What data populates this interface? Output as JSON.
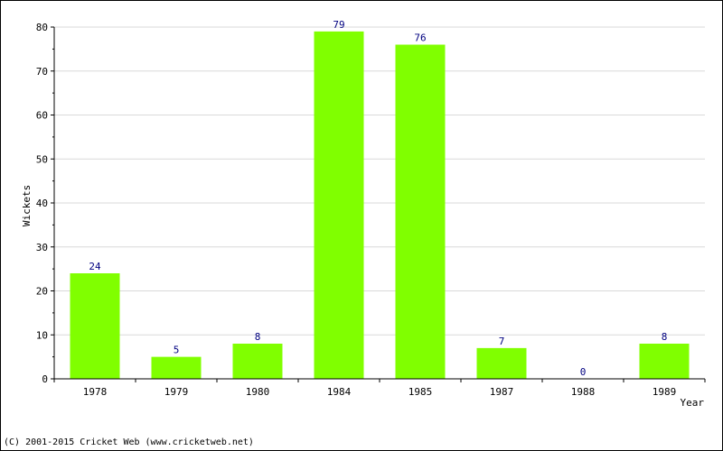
{
  "chart_data": {
    "type": "bar",
    "categories": [
      "1978",
      "1979",
      "1980",
      "1984",
      "1985",
      "1987",
      "1988",
      "1989"
    ],
    "values": [
      24,
      5,
      8,
      79,
      76,
      7,
      0,
      8
    ],
    "title": "",
    "xlabel": "Year",
    "ylabel": "Wickets",
    "ylim": [
      0,
      80
    ],
    "yticks": [
      0,
      10,
      20,
      30,
      40,
      50,
      60,
      70,
      80
    ],
    "grid": true,
    "show_value_labels": true,
    "colors": {
      "bar": "#80ff00",
      "value_label": "#000080",
      "grid": "#d9d9d9",
      "axis": "#000000"
    }
  },
  "footer": {
    "copyright": "(C) 2001-2015 Cricket Web (www.cricketweb.net)"
  }
}
